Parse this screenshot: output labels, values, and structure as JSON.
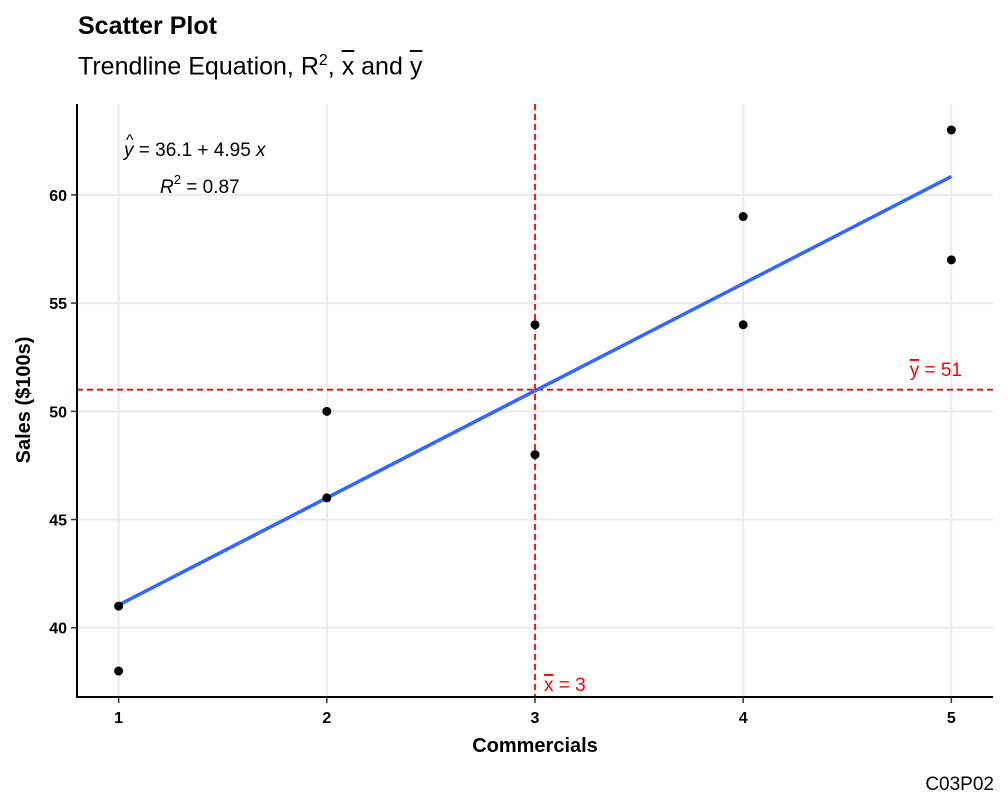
{
  "chart_data": {
    "type": "scatter",
    "title": "Scatter Plot",
    "subtitle": {
      "prefix": "Trendline Equation, R",
      "sup": "2",
      "sep1": ", ",
      "xbar": "x",
      "sep2": " and ",
      "ybar": "y"
    },
    "xlabel": "Commercials",
    "ylabel": "Sales ($100s)",
    "xlim": [
      0.8,
      5.2
    ],
    "ylim": [
      36.8,
      64.2
    ],
    "xticks": [
      1,
      2,
      3,
      4,
      5
    ],
    "yticks": [
      40,
      45,
      50,
      55,
      60
    ],
    "grid": true,
    "points": [
      {
        "x": 1,
        "y": 41
      },
      {
        "x": 1,
        "y": 38
      },
      {
        "x": 2,
        "y": 50
      },
      {
        "x": 2,
        "y": 46
      },
      {
        "x": 3,
        "y": 54
      },
      {
        "x": 3,
        "y": 48
      },
      {
        "x": 4,
        "y": 59
      },
      {
        "x": 4,
        "y": 54
      },
      {
        "x": 5,
        "y": 63
      },
      {
        "x": 5,
        "y": 57
      }
    ],
    "trendline": {
      "intercept": 36.1,
      "slope": 4.95,
      "x_range": [
        1,
        5
      ],
      "color": "#3366ff"
    },
    "mean_x": {
      "value": 3,
      "label_sym": "x",
      "label_val": " = 3",
      "color": "#ff0000"
    },
    "mean_y": {
      "value": 51,
      "label_sym": "y",
      "label_val": " = 51",
      "color": "#ff0000"
    },
    "equation": {
      "yhat": "y",
      "rhs": " = 36.1 + 4.95 ",
      "x": "x",
      "r": "R",
      "r_sup": "2",
      "r_rhs": " = 0.87"
    },
    "caption": "C03P02"
  }
}
